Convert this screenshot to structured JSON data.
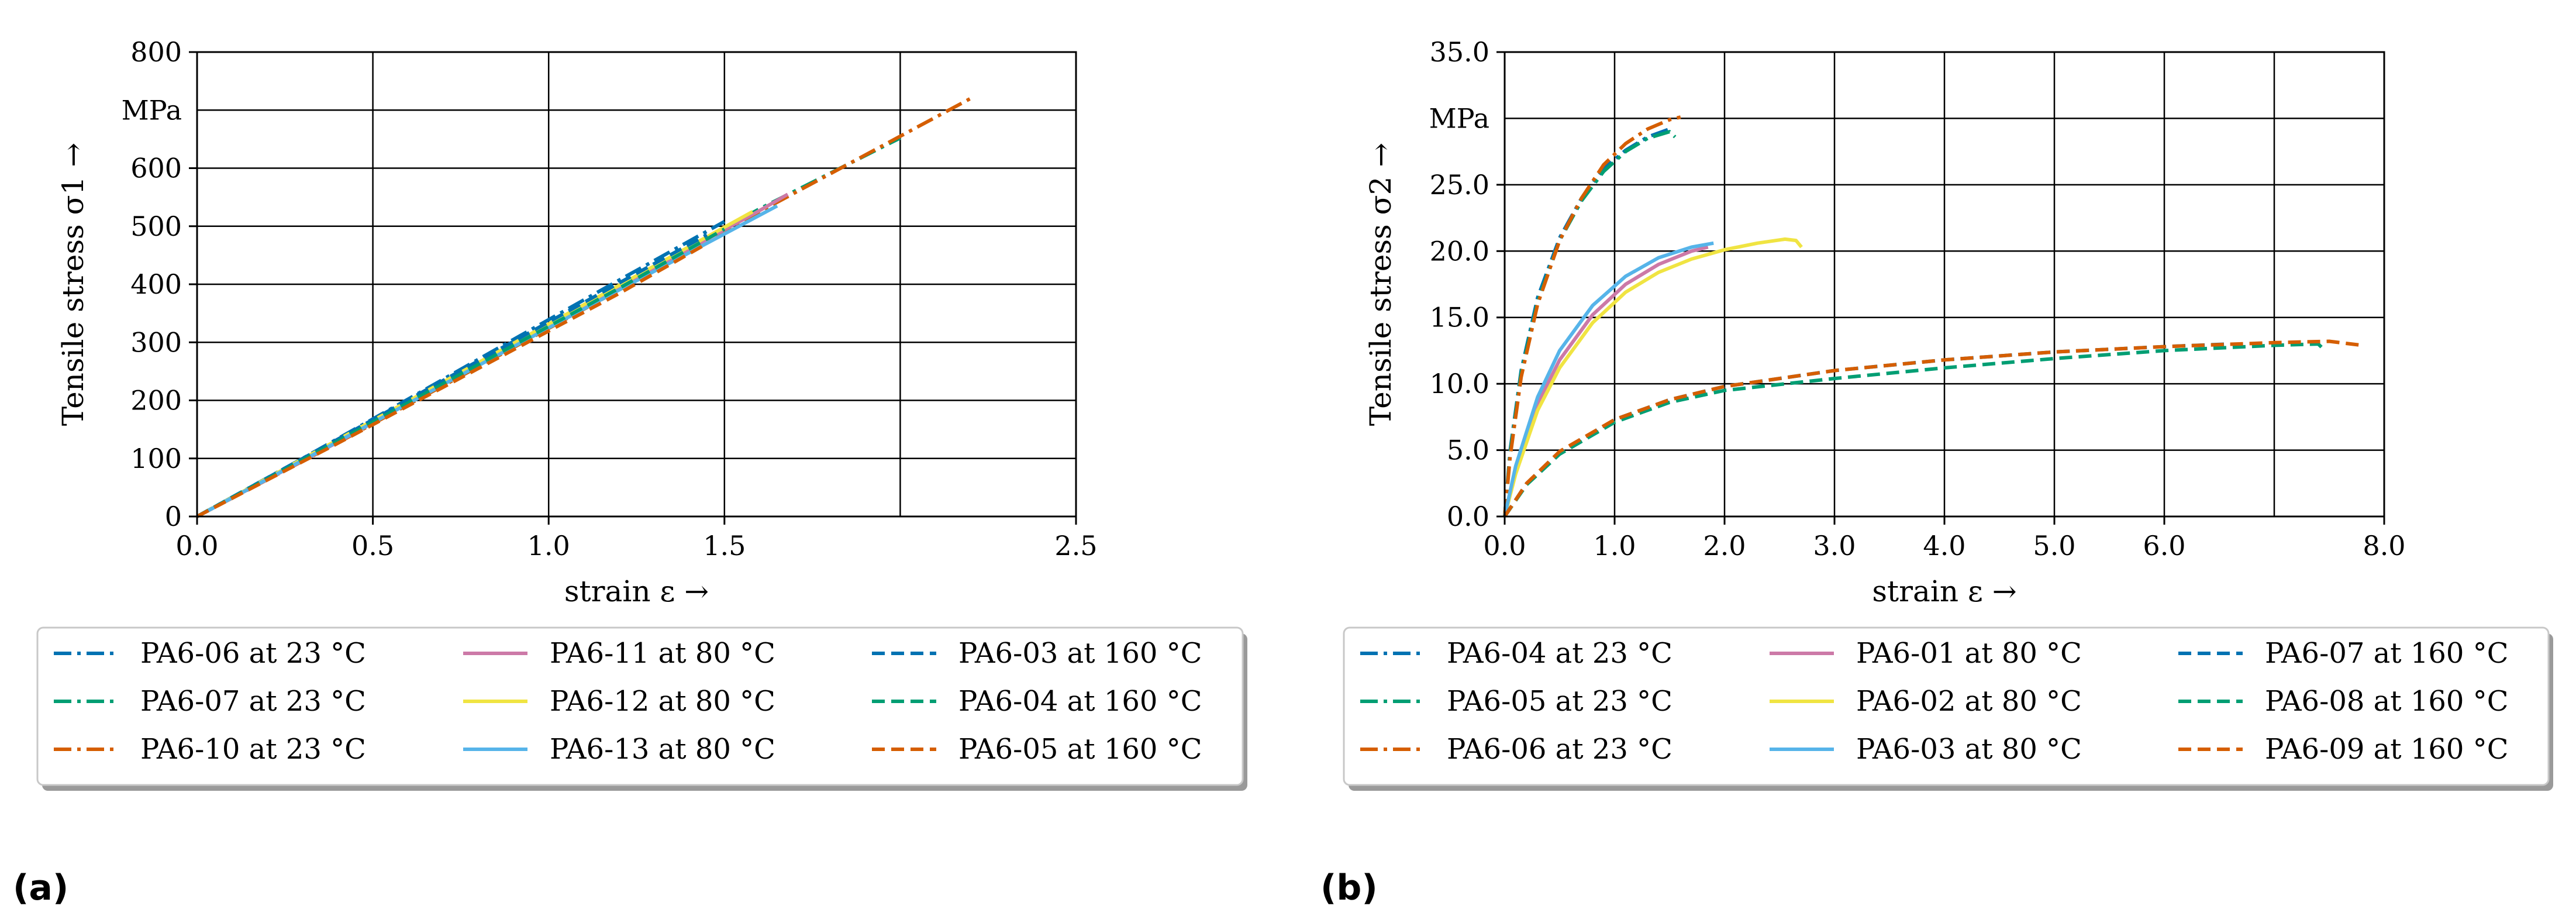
{
  "chart_data": [
    {
      "type": "line",
      "panel_label": "(a)",
      "xlabel": "strain ε →",
      "ylabel": "Tensile stress σ1 →",
      "unit_label": "MPa",
      "xlim": [
        0.0,
        2.5
      ],
      "ylim": [
        0,
        800
      ],
      "x_tick_labels": [
        {
          "v": 0.0,
          "label": "0.0"
        },
        {
          "v": 0.5,
          "label": "0.5"
        },
        {
          "v": 1.0,
          "label": "1.0"
        },
        {
          "v": 1.5,
          "label": "1.5"
        },
        {
          "v": 2.5,
          "label": "2.5"
        }
      ],
      "x_grid": [
        0.5,
        1.0,
        1.5,
        2.0
      ],
      "y_tick_labels": [
        {
          "v": 0,
          "label": "0"
        },
        {
          "v": 100,
          "label": "100"
        },
        {
          "v": 200,
          "label": "200"
        },
        {
          "v": 300,
          "label": "300"
        },
        {
          "v": 400,
          "label": "400"
        },
        {
          "v": 500,
          "label": "500"
        },
        {
          "v": 600,
          "label": "600"
        },
        {
          "v": 800,
          "label": "800"
        }
      ],
      "y_grid": [
        100,
        200,
        300,
        400,
        500,
        600,
        700
      ],
      "series": [
        {
          "name": "PA6-06 at 23 °C",
          "color": "#0072b2",
          "dash": "dashdot",
          "x": [
            0,
            0.3,
            0.6,
            0.9,
            1.2,
            1.5
          ],
          "y": [
            0,
            100,
            202,
            305,
            407,
            508
          ]
        },
        {
          "name": "PA6-07 at 23 °C",
          "color": "#009e73",
          "dash": "dashdot",
          "x": [
            0,
            0.4,
            0.8,
            1.2,
            1.6,
            2.0
          ],
          "y": [
            0,
            132,
            265,
            397,
            530,
            652
          ]
        },
        {
          "name": "PA6-10 at 23 °C",
          "color": "#d55e00",
          "dash": "dashdot",
          "x": [
            0,
            0.4,
            0.8,
            1.2,
            1.6,
            2.0,
            2.2
          ],
          "y": [
            0,
            127,
            258,
            390,
            525,
            655,
            720
          ]
        },
        {
          "name": "PA6-11 at 80 °C",
          "color": "#cc79a7",
          "dash": "solid",
          "x": [
            0,
            0.4,
            0.8,
            1.2,
            1.6,
            1.68
          ],
          "y": [
            0,
            128,
            262,
            395,
            527,
            555
          ]
        },
        {
          "name": "PA6-12 at 80 °C",
          "color": "#f0e442",
          "dash": "solid",
          "x": [
            0,
            0.4,
            0.8,
            1.2,
            1.58
          ],
          "y": [
            0,
            132,
            265,
            398,
            525
          ]
        },
        {
          "name": "PA6-13 at 80 °C",
          "color": "#56b4e9",
          "dash": "solid",
          "x": [
            0,
            0.4,
            0.8,
            1.2,
            1.65
          ],
          "y": [
            0,
            129,
            260,
            390,
            535
          ]
        },
        {
          "name": "PA6-03 at 160 °C",
          "color": "#0072b2",
          "dash": "dashed",
          "x": [
            0,
            0.4,
            0.8,
            1.2,
            1.45
          ],
          "y": [
            0,
            133,
            268,
            402,
            485
          ]
        },
        {
          "name": "PA6-04 at 160 °C",
          "color": "#009e73",
          "dash": "dashed",
          "x": [
            0,
            0.4,
            0.8,
            1.2,
            1.5
          ],
          "y": [
            0,
            130,
            262,
            393,
            495
          ]
        },
        {
          "name": "PA6-05 at 160 °C",
          "color": "#d55e00",
          "dash": "dashed",
          "x": [
            0,
            0.4,
            0.8,
            1.2,
            1.45
          ],
          "y": [
            0,
            126,
            255,
            384,
            470
          ]
        }
      ]
    },
    {
      "type": "line",
      "panel_label": "(b)",
      "xlabel": "strain ε →",
      "ylabel": "Tensile stress σ2 →",
      "unit_label": "MPa",
      "xlim": [
        0.0,
        8.0
      ],
      "ylim": [
        0.0,
        35.0
      ],
      "x_tick_labels": [
        {
          "v": 0.0,
          "label": "0.0"
        },
        {
          "v": 1.0,
          "label": "1.0"
        },
        {
          "v": 2.0,
          "label": "2.0"
        },
        {
          "v": 3.0,
          "label": "3.0"
        },
        {
          "v": 4.0,
          "label": "4.0"
        },
        {
          "v": 5.0,
          "label": "5.0"
        },
        {
          "v": 6.0,
          "label": "6.0"
        },
        {
          "v": 8.0,
          "label": "8.0"
        }
      ],
      "x_grid": [
        1,
        2,
        3,
        4,
        5,
        6,
        7
      ],
      "y_tick_labels": [
        {
          "v": 0.0,
          "label": "0.0"
        },
        {
          "v": 5.0,
          "label": "5.0"
        },
        {
          "v": 10.0,
          "label": "10.0"
        },
        {
          "v": 15.0,
          "label": "15.0"
        },
        {
          "v": 20.0,
          "label": "20.0"
        },
        {
          "v": 25.0,
          "label": "25.0"
        },
        {
          "v": 35.0,
          "label": "35.0"
        }
      ],
      "y_grid": [
        5,
        10,
        15,
        20,
        25,
        30
      ],
      "series": [
        {
          "name": "PA6-04 at 23 °C",
          "color": "#0072b2",
          "dash": "dashdot",
          "x": [
            0,
            0.05,
            0.15,
            0.3,
            0.5,
            0.7,
            0.9,
            1.1,
            1.3,
            1.5
          ],
          "y": [
            0,
            5,
            11,
            16.5,
            21,
            24,
            26.2,
            27.6,
            28.6,
            29.2
          ]
        },
        {
          "name": "PA6-05 at 23 °C",
          "color": "#009e73",
          "dash": "dashdot",
          "x": [
            0,
            0.05,
            0.15,
            0.3,
            0.5,
            0.7,
            0.9,
            1.1,
            1.3,
            1.5,
            1.55
          ],
          "y": [
            0,
            4.8,
            10.8,
            16.2,
            20.8,
            23.8,
            26.0,
            27.5,
            28.5,
            29.0,
            28.6
          ]
        },
        {
          "name": "PA6-06 at 23 °C",
          "color": "#d55e00",
          "dash": "dashdot",
          "x": [
            0,
            0.05,
            0.15,
            0.3,
            0.5,
            0.7,
            0.9,
            1.1,
            1.3,
            1.5,
            1.6
          ],
          "y": [
            0,
            4.5,
            10.5,
            16,
            20.8,
            24,
            26.5,
            28.1,
            29.2,
            29.9,
            30.1
          ]
        },
        {
          "name": "PA6-01 at 80 °C",
          "color": "#cc79a7",
          "dash": "solid",
          "x": [
            0,
            0.1,
            0.3,
            0.5,
            0.8,
            1.1,
            1.4,
            1.7,
            1.85
          ],
          "y": [
            0,
            3.5,
            8.5,
            11.8,
            15.2,
            17.5,
            19.0,
            20.0,
            20.3
          ]
        },
        {
          "name": "PA6-02 at 80 °C",
          "color": "#f0e442",
          "dash": "solid",
          "x": [
            0,
            0.1,
            0.3,
            0.5,
            0.8,
            1.1,
            1.4,
            1.7,
            2.0,
            2.3,
            2.55,
            2.65,
            2.7
          ],
          "y": [
            0,
            3.2,
            8.0,
            11.2,
            14.6,
            16.9,
            18.4,
            19.4,
            20.1,
            20.6,
            20.9,
            20.8,
            20.3
          ]
        },
        {
          "name": "PA6-03 at 80 °C",
          "color": "#56b4e9",
          "dash": "solid",
          "x": [
            0,
            0.1,
            0.3,
            0.5,
            0.8,
            1.1,
            1.4,
            1.7,
            1.9
          ],
          "y": [
            0,
            3.8,
            9.0,
            12.5,
            15.9,
            18.1,
            19.5,
            20.3,
            20.6
          ]
        },
        {
          "name": "PA6-07 at 160 °C",
          "color": "#0072b2",
          "dash": "dashed",
          "x": [
            0,
            0.2,
            0.5,
            1.0,
            1.5,
            2.0,
            3.0,
            4.0,
            5.0,
            6.0,
            6.6
          ],
          "y": [
            0,
            2.5,
            4.8,
            7.3,
            8.8,
            9.8,
            11.0,
            11.8,
            12.4,
            12.8,
            13.0
          ]
        },
        {
          "name": "PA6-08 at 160 °C",
          "color": "#009e73",
          "dash": "dashed",
          "x": [
            0,
            0.2,
            0.5,
            1.0,
            1.5,
            2.0,
            3.0,
            4.0,
            5.0,
            6.0,
            7.0,
            7.4,
            7.45
          ],
          "y": [
            0,
            2.4,
            4.7,
            7.1,
            8.6,
            9.5,
            10.4,
            11.2,
            11.9,
            12.5,
            12.9,
            13.0,
            12.6
          ]
        },
        {
          "name": "PA6-09 at 160 °C",
          "color": "#d55e00",
          "dash": "dashed",
          "x": [
            0,
            0.2,
            0.5,
            1.0,
            1.5,
            2.0,
            3.0,
            4.0,
            5.0,
            6.0,
            7.0,
            7.5,
            7.8
          ],
          "y": [
            0,
            2.5,
            4.9,
            7.3,
            8.8,
            9.8,
            11.0,
            11.8,
            12.4,
            12.8,
            13.1,
            13.2,
            12.9
          ]
        }
      ]
    }
  ]
}
